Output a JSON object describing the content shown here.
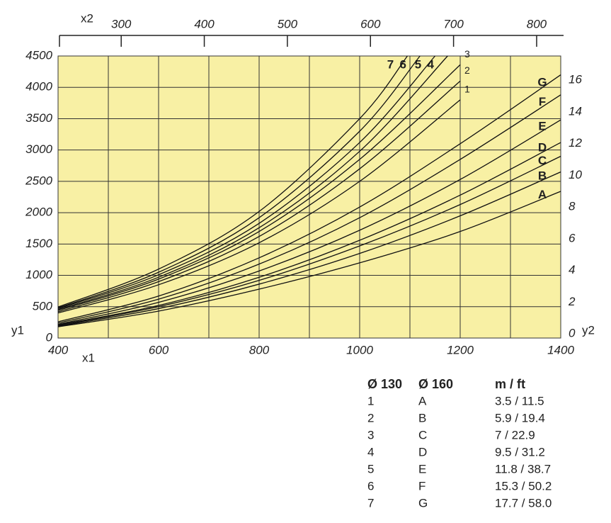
{
  "chart_data": {
    "type": "line",
    "x_label": "x1",
    "x2_label": "x2",
    "y_label": "y1",
    "y2_label": "y2",
    "xlim": [
      400,
      1400
    ],
    "xticks": [
      400,
      600,
      800,
      1000,
      1200,
      1400
    ],
    "x2lim": [
      224,
      829
    ],
    "x2ticks": [
      300,
      400,
      500,
      600,
      700,
      800
    ],
    "ylim": [
      0,
      4500
    ],
    "yticks": [
      0,
      500,
      1000,
      1500,
      2000,
      2500,
      3000,
      3500,
      4000,
      4500
    ],
    "y2lim": [
      0,
      17.8
    ],
    "y2ticks": [
      0,
      2,
      4,
      6,
      8,
      10,
      12,
      14,
      16
    ],
    "grid": true,
    "background": "#f8f0a4",
    "color": "#111111",
    "series": [
      {
        "name": "1",
        "x": [
          400,
          600,
          800,
          1000,
          1200
        ],
        "values": [
          400,
          850,
          1520,
          2500,
          3800
        ]
      },
      {
        "name": "2",
        "x": [
          400,
          600,
          800,
          1000,
          1200
        ],
        "values": [
          420,
          900,
          1620,
          2700,
          4100
        ]
      },
      {
        "name": "3",
        "x": [
          400,
          600,
          800,
          1000,
          1200
        ],
        "values": [
          440,
          940,
          1700,
          2850,
          4360
        ]
      },
      {
        "name": "4",
        "x": [
          400,
          600,
          800,
          1000,
          1175
        ],
        "values": [
          455,
          970,
          1760,
          2980,
          4500
        ]
      },
      {
        "name": "5",
        "x": [
          400,
          600,
          800,
          1000,
          1150
        ],
        "values": [
          470,
          1010,
          1830,
          3120,
          4500
        ]
      },
      {
        "name": "6",
        "x": [
          400,
          600,
          800,
          1000,
          1120
        ],
        "values": [
          480,
          1050,
          1920,
          3300,
          4500
        ]
      },
      {
        "name": "7",
        "x": [
          400,
          600,
          800,
          1000,
          1095
        ],
        "values": [
          495,
          1100,
          2020,
          3500,
          4500
        ]
      },
      {
        "name": "A",
        "x": [
          400,
          600,
          800,
          1000,
          1200,
          1400
        ],
        "values": [
          180,
          430,
          780,
          1200,
          1700,
          2340
        ]
      },
      {
        "name": "B",
        "x": [
          400,
          600,
          800,
          1000,
          1200,
          1400
        ],
        "values": [
          190,
          470,
          860,
          1350,
          1950,
          2650
        ]
      },
      {
        "name": "C",
        "x": [
          400,
          600,
          800,
          1000,
          1200,
          1400
        ],
        "values": [
          200,
          500,
          920,
          1470,
          2130,
          2900
        ]
      },
      {
        "name": "D",
        "x": [
          400,
          600,
          800,
          1000,
          1200,
          1400
        ],
        "values": [
          210,
          520,
          970,
          1560,
          2280,
          3120
        ]
      },
      {
        "name": "E",
        "x": [
          400,
          600,
          800,
          1000,
          1200,
          1400
        ],
        "values": [
          220,
          570,
          1070,
          1720,
          2530,
          3480
        ]
      },
      {
        "name": "F",
        "x": [
          400,
          600,
          800,
          1000,
          1200,
          1400
        ],
        "values": [
          240,
          620,
          1180,
          1920,
          2850,
          3880
        ]
      },
      {
        "name": "G",
        "x": [
          400,
          600,
          800,
          1000,
          1200,
          1400
        ],
        "values": [
          260,
          670,
          1280,
          2090,
          3100,
          4200
        ]
      }
    ]
  },
  "legend_table": {
    "headers": [
      "Ø 130",
      "Ø 160",
      "m / ft"
    ],
    "rows": [
      [
        "1",
        "A",
        "3.5 / 11.5"
      ],
      [
        "2",
        "B",
        "5.9 / 19.4"
      ],
      [
        "3",
        "C",
        "7 / 22.9"
      ],
      [
        "4",
        "D",
        "9.5 / 31.2"
      ],
      [
        "5",
        "E",
        "11.8 / 38.7"
      ],
      [
        "6",
        "F",
        "15.3 / 50.2"
      ],
      [
        "7",
        "G",
        "17.7 / 58.0"
      ]
    ]
  }
}
